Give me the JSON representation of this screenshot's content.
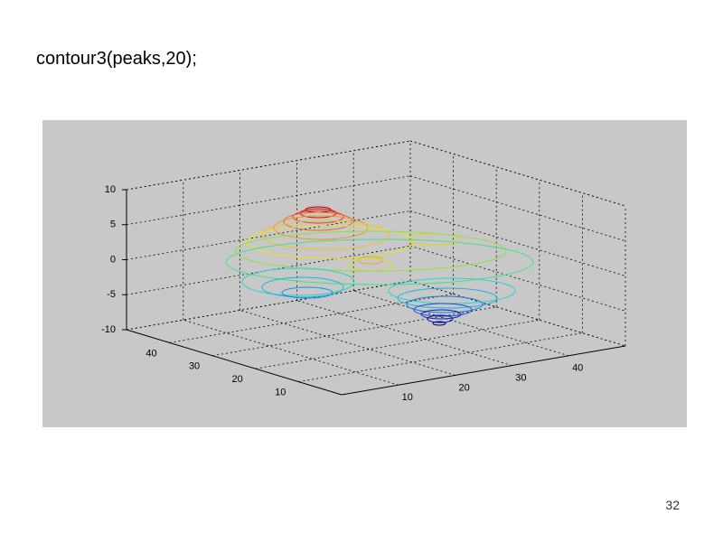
{
  "title": "contour3(peaks,20);",
  "page_number": "32",
  "figure": {
    "xlim": [
      0,
      50
    ],
    "ylim": [
      0,
      50
    ],
    "zlim": [
      -10,
      10
    ],
    "xticks": [
      10,
      20,
      30,
      40
    ],
    "yticks": [
      10,
      20,
      30,
      40
    ],
    "zticks": [
      -10,
      -5,
      0,
      5,
      10
    ]
  }
}
